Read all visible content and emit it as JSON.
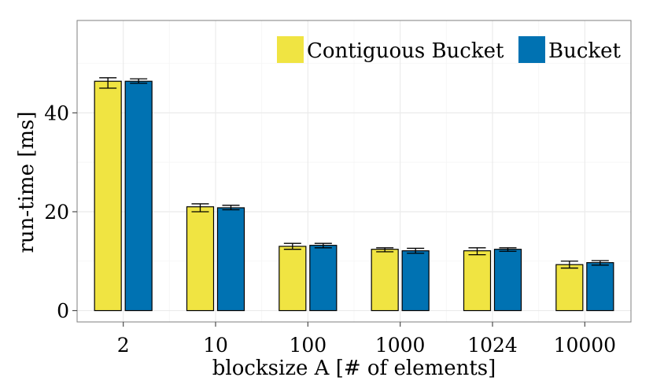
{
  "chart_data": {
    "type": "bar",
    "title": "",
    "xlabel": "blocksize A [# of elements]",
    "ylabel": "run-time [ms]",
    "categories": [
      "2",
      "10",
      "100",
      "1000",
      "1024",
      "10000"
    ],
    "ylim": [
      -2.3,
      58.7
    ],
    "yticks": [
      0,
      20,
      40
    ],
    "y_tick_labels": [
      "0",
      "20",
      "40"
    ],
    "grid": true,
    "legend": {
      "position": "top-right"
    },
    "series": [
      {
        "name": "Contiguous Bucket",
        "color": "#f0e442",
        "values": [
          46.4,
          21.0,
          13.0,
          12.4,
          12.1,
          9.3
        ],
        "error_low": [
          45.0,
          20.0,
          12.4,
          11.9,
          11.3,
          8.6
        ],
        "error_high": [
          47.1,
          21.6,
          13.6,
          12.7,
          12.7,
          10.0
        ]
      },
      {
        "name": "Bucket",
        "color": "#0072b2",
        "values": [
          46.4,
          20.8,
          13.2,
          12.1,
          12.4,
          9.7
        ],
        "error_low": [
          46.0,
          20.4,
          12.7,
          11.6,
          12.0,
          9.2
        ],
        "error_high": [
          46.9,
          21.3,
          13.6,
          12.6,
          12.7,
          10.1
        ]
      }
    ]
  }
}
